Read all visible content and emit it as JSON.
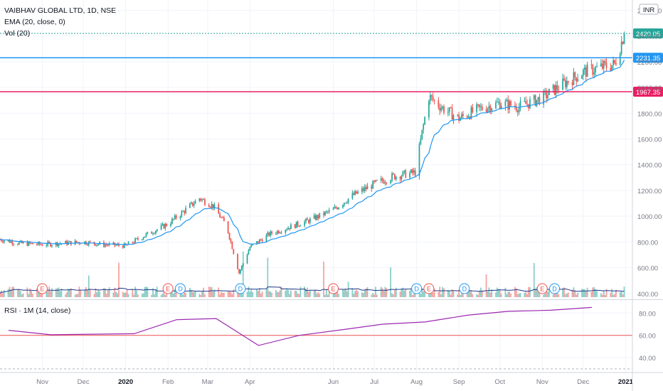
{
  "header": {
    "symbol_line": "VAIBHAV GLOBAL LTD, 1D, NSE",
    "ema_label": "EMA (20, close, 0)",
    "vol_label": "Vol (20)",
    "currency": "INR"
  },
  "rsi_panel": {
    "label": "RSI · 1M (14, close)"
  },
  "colors": {
    "up": "#26a69a",
    "down": "#ef5350",
    "ema": "#2196f3",
    "rsi": "#9c27b0",
    "resistance": "#2196f3",
    "support": "#e91e63",
    "grid": "#f0f3fa",
    "axis_text": "#787b86"
  },
  "chart_data": [
    {
      "type": "candlestick",
      "title": "VAIBHAV GLOBAL LTD, 1D, NSE",
      "y_axis": {
        "ticks": [
          "400.00",
          "600.00",
          "800.00",
          "1000.00",
          "1200.00",
          "1400.00",
          "1600.00",
          "1800.00",
          "2000.00",
          "2200.00",
          "2400.00",
          "2600.00"
        ],
        "ylim": [
          360,
          2680
        ]
      },
      "x_axis": {
        "ticks": [
          "Nov",
          "Dec",
          "2020",
          "Feb",
          "Mar",
          "Apr",
          "Jun",
          "Jul",
          "Aug",
          "Sep",
          "Oct",
          "Nov",
          "Dec",
          "2021"
        ]
      },
      "close_path": [
        [
          "2019-10-01",
          820
        ],
        [
          "2019-10-15",
          790
        ],
        [
          "2019-11-01",
          780
        ],
        [
          "2019-11-15",
          790
        ],
        [
          "2019-12-01",
          800
        ],
        [
          "2019-12-15",
          780
        ],
        [
          "2020-01-01",
          770
        ],
        [
          "2020-01-15",
          850
        ],
        [
          "2020-02-01",
          940
        ],
        [
          "2020-02-15",
          1060
        ],
        [
          "2020-02-24",
          1140
        ],
        [
          "2020-03-05",
          1080
        ],
        [
          "2020-03-15",
          920
        ],
        [
          "2020-03-24",
          560
        ],
        [
          "2020-04-01",
          760
        ],
        [
          "2020-04-15",
          860
        ],
        [
          "2020-05-01",
          920
        ],
        [
          "2020-05-15",
          970
        ],
        [
          "2020-06-01",
          1050
        ],
        [
          "2020-06-15",
          1160
        ],
        [
          "2020-07-01",
          1250
        ],
        [
          "2020-07-15",
          1310
        ],
        [
          "2020-07-31",
          1340
        ],
        [
          "2020-08-05",
          1650
        ],
        [
          "2020-08-10",
          1930
        ],
        [
          "2020-08-20",
          1840
        ],
        [
          "2020-09-01",
          1760
        ],
        [
          "2020-09-15",
          1830
        ],
        [
          "2020-10-01",
          1880
        ],
        [
          "2020-10-15",
          1850
        ],
        [
          "2020-11-01",
          1920
        ],
        [
          "2020-11-15",
          2020
        ],
        [
          "2020-12-01",
          2120
        ],
        [
          "2020-12-15",
          2160
        ],
        [
          "2020-12-24",
          2180
        ],
        [
          "2020-12-31",
          2420
        ]
      ],
      "ema_label": "EMA (20, close, 0)",
      "price_labels": {
        "last": 2420.05,
        "resistance": 2231.35,
        "support": 1967.35
      },
      "last_marker_value": 2420.05,
      "event_markers": [
        {
          "label": "E",
          "date": "2019-11-01"
        },
        {
          "label": "E",
          "date": "2020-02-01"
        },
        {
          "label": "D",
          "date": "2020-02-10"
        },
        {
          "label": "D",
          "date": "2020-03-25"
        },
        {
          "label": "E",
          "date": "2020-06-01"
        },
        {
          "label": "D",
          "date": "2020-08-01"
        },
        {
          "label": "E",
          "date": "2020-08-10"
        },
        {
          "label": "D",
          "date": "2020-09-05"
        },
        {
          "label": "E",
          "date": "2020-11-01"
        },
        {
          "label": "D",
          "date": "2020-11-10"
        }
      ]
    },
    {
      "type": "line",
      "title": "RSI · 1M (14, close)",
      "series": [
        {
          "name": "RSI",
          "x": [
            "2019-10",
            "2019-11",
            "2019-12",
            "2020-01",
            "2020-02",
            "2020-03",
            "2020-04",
            "2020-05",
            "2020-06",
            "2020-07",
            "2020-08",
            "2020-09",
            "2020-10",
            "2020-11",
            "2020-12"
          ],
          "values": [
            64.5,
            60.5,
            61,
            61.5,
            74,
            75,
            51,
            60,
            65,
            70,
            72,
            78,
            81.5,
            82.5,
            85
          ]
        }
      ],
      "y_axis": {
        "ticks": [
          "40.00",
          "60.00",
          "80.00"
        ],
        "ylim": [
          28,
          91
        ]
      },
      "reference_lines": [
        60,
        30
      ]
    }
  ]
}
